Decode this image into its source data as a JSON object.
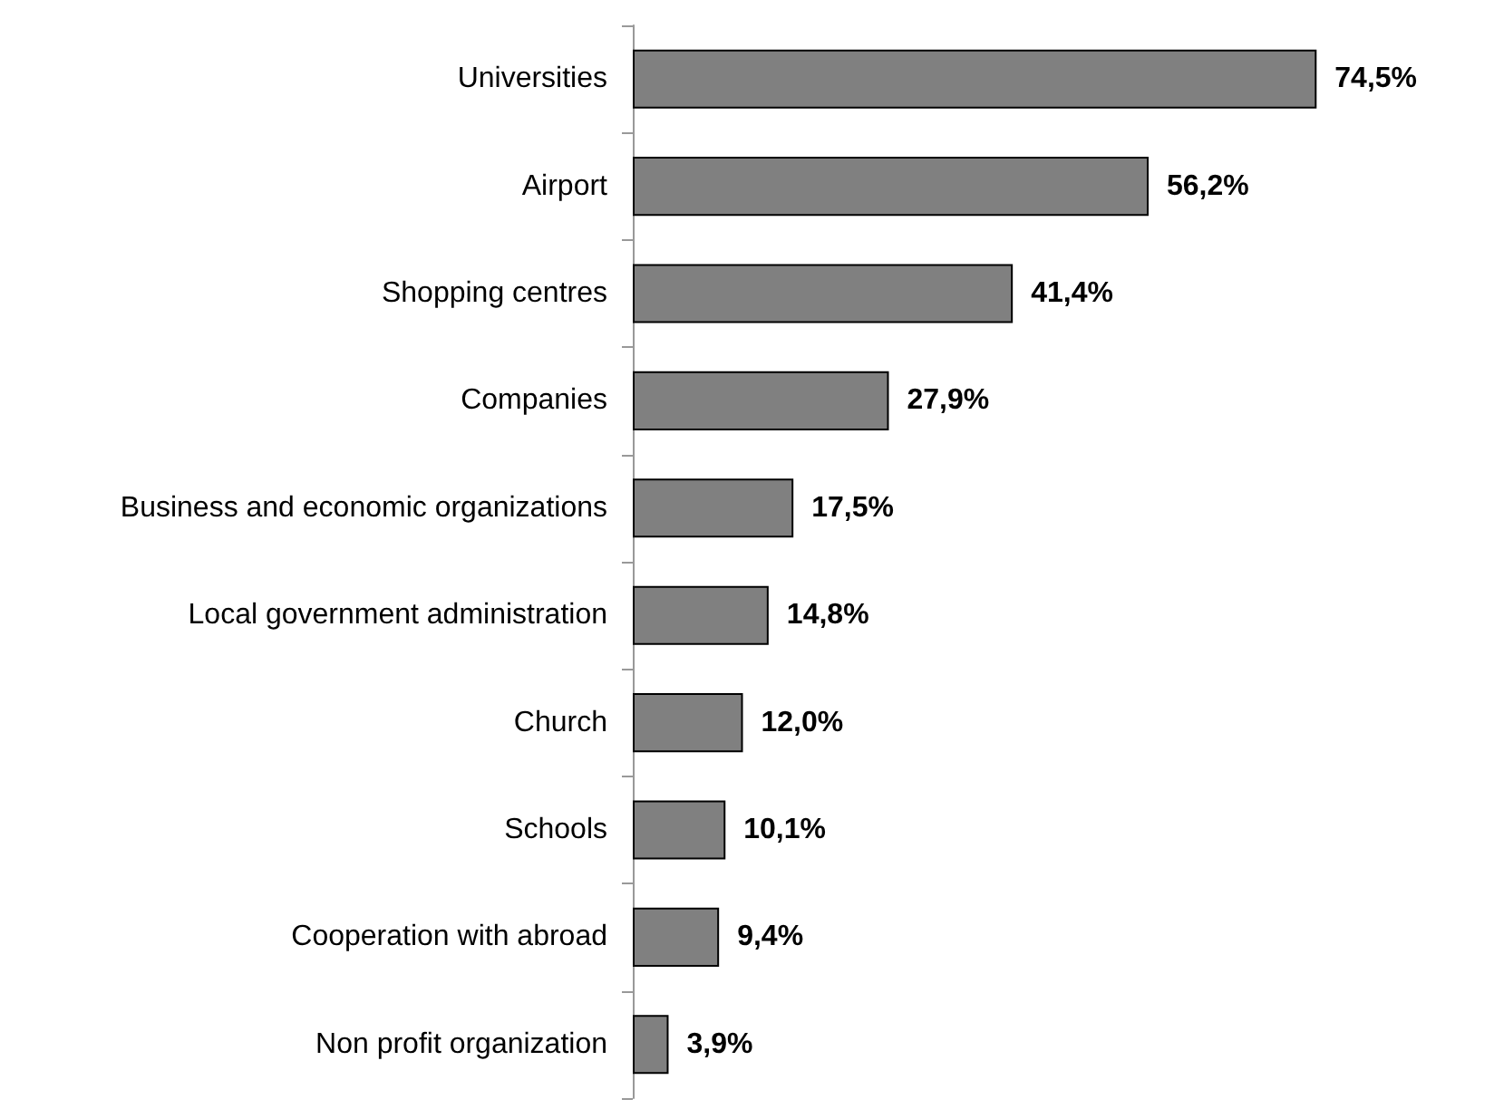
{
  "chart_data": {
    "type": "bar",
    "orientation": "horizontal",
    "categories": [
      "Universities",
      "Airport",
      "Shopping centres",
      "Companies",
      "Business and economic organizations",
      "Local government administration",
      "Church",
      "Schools",
      "Cooperation with abroad",
      "Non profit organization"
    ],
    "values": [
      74.5,
      56.2,
      41.4,
      27.9,
      17.5,
      14.8,
      12.0,
      10.1,
      9.4,
      3.9
    ],
    "value_labels": [
      "74,5%",
      "56,2%",
      "41,4%",
      "27,9%",
      "17,5%",
      "14,8%",
      "12,0%",
      "10,1%",
      "9,4%",
      "3,9%"
    ],
    "color": "#808080"
  }
}
